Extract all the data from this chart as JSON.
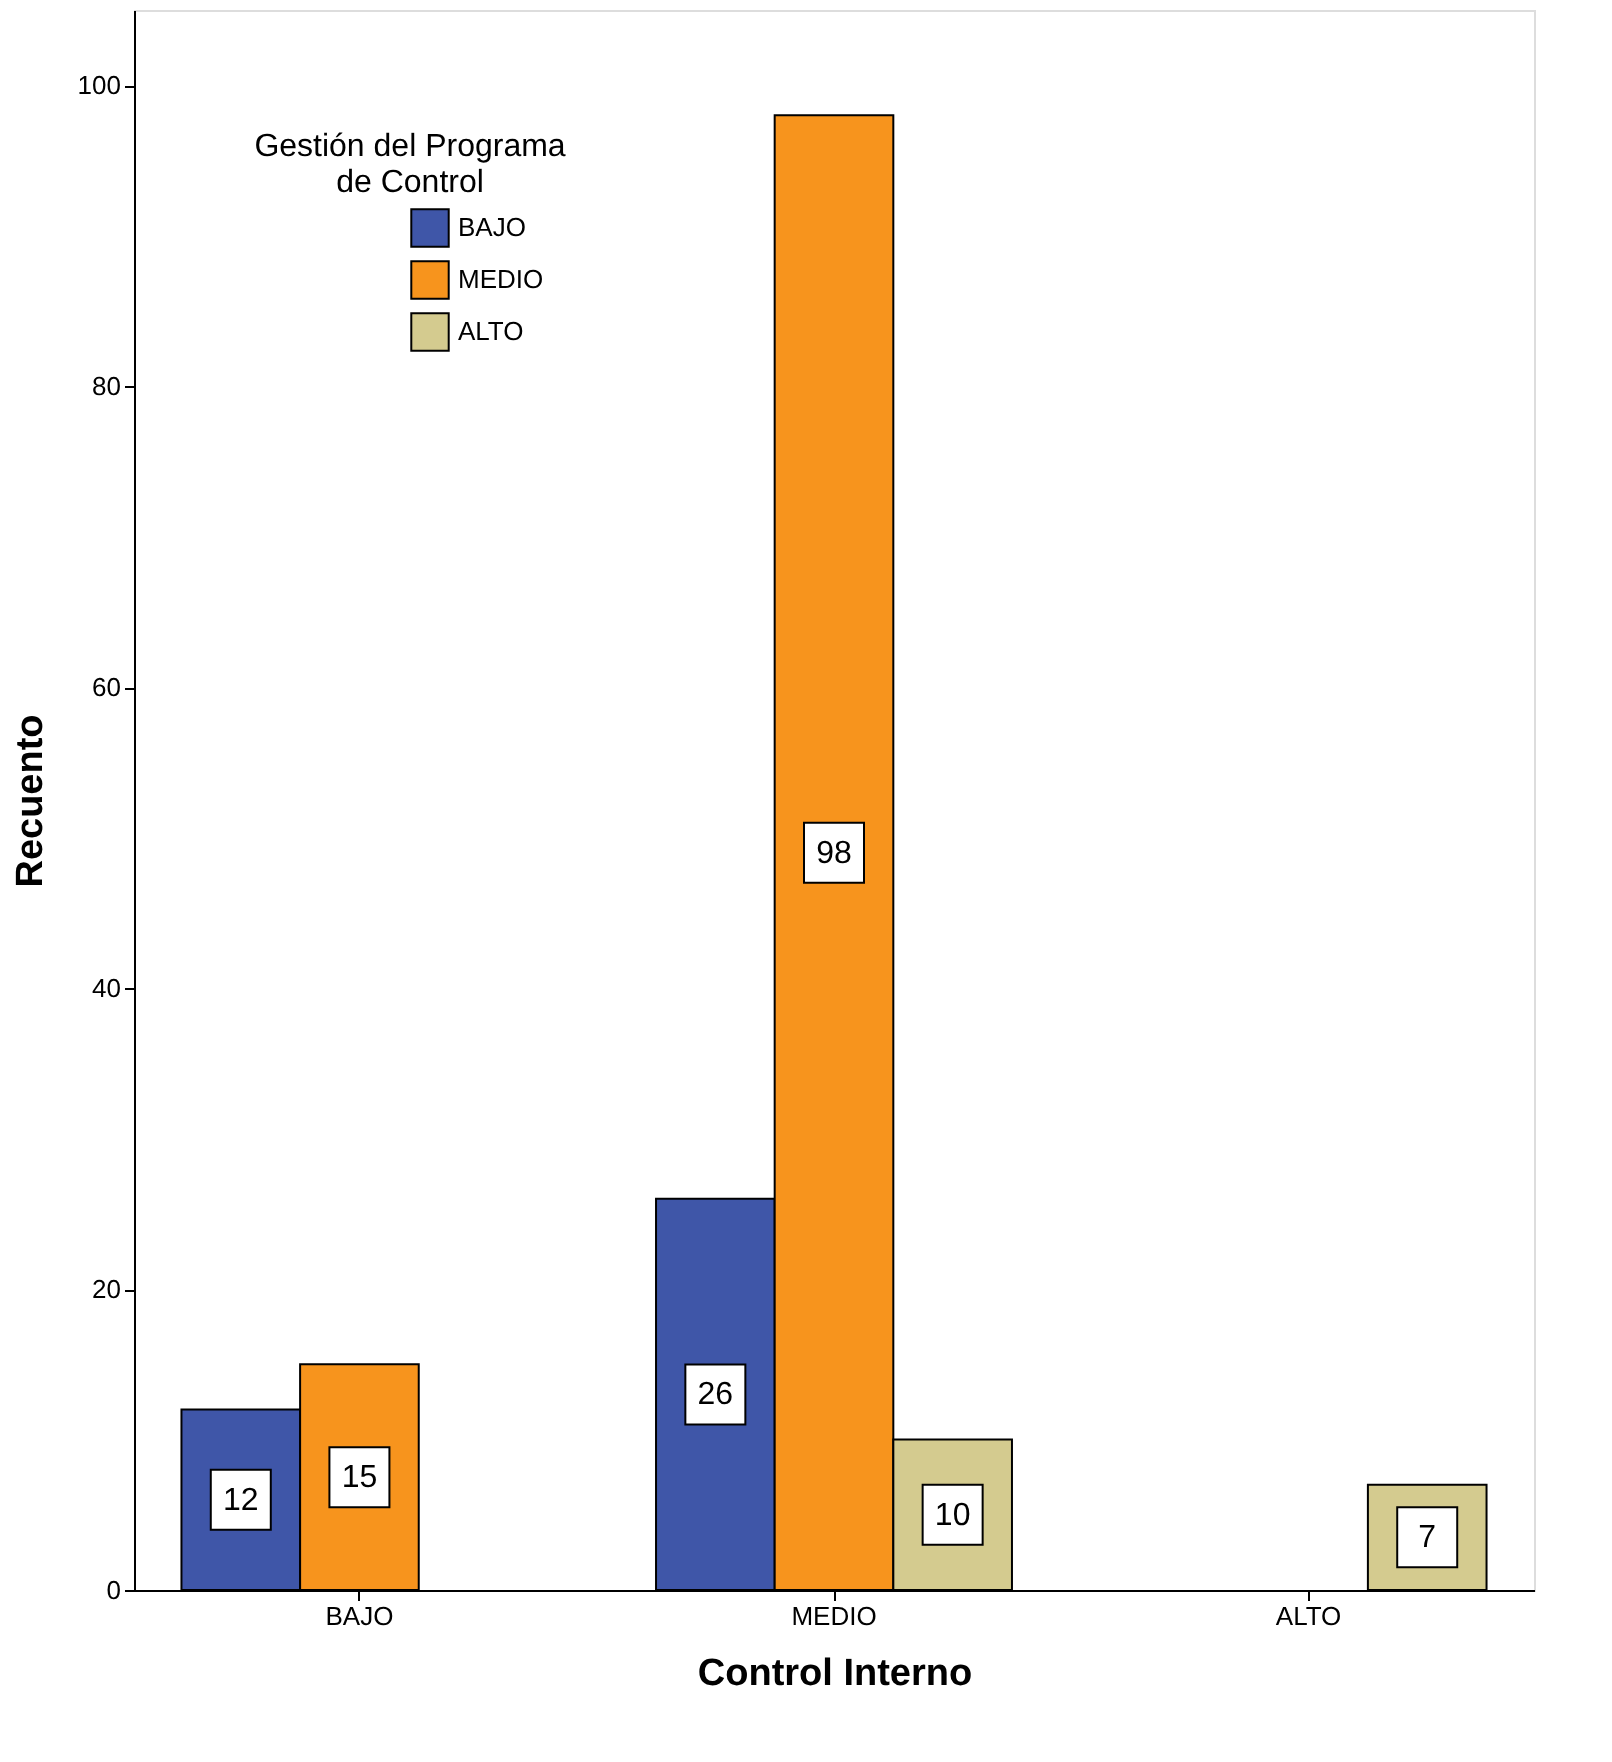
{
  "chart_data": {
    "type": "bar",
    "xlabel": "Control Interno",
    "ylabel": "Recuento",
    "legend_title": "Gestión del Programa\nde Control",
    "categories": [
      "BAJO",
      "MEDIO",
      "ALTO"
    ],
    "series": [
      {
        "name": "BAJO",
        "color": "#3f56a8",
        "values": [
          12,
          26,
          null
        ]
      },
      {
        "name": "MEDIO",
        "color": "#f7941d",
        "values": [
          15,
          98,
          null
        ]
      },
      {
        "name": "ALTO",
        "color": "#d4cb8f",
        "values": [
          null,
          10,
          7
        ]
      }
    ],
    "ylim": [
      0,
      105
    ],
    "yticks": [
      0,
      20,
      40,
      60,
      80,
      100
    ],
    "grid": false,
    "legend": "top left",
    "data_labels": true
  }
}
